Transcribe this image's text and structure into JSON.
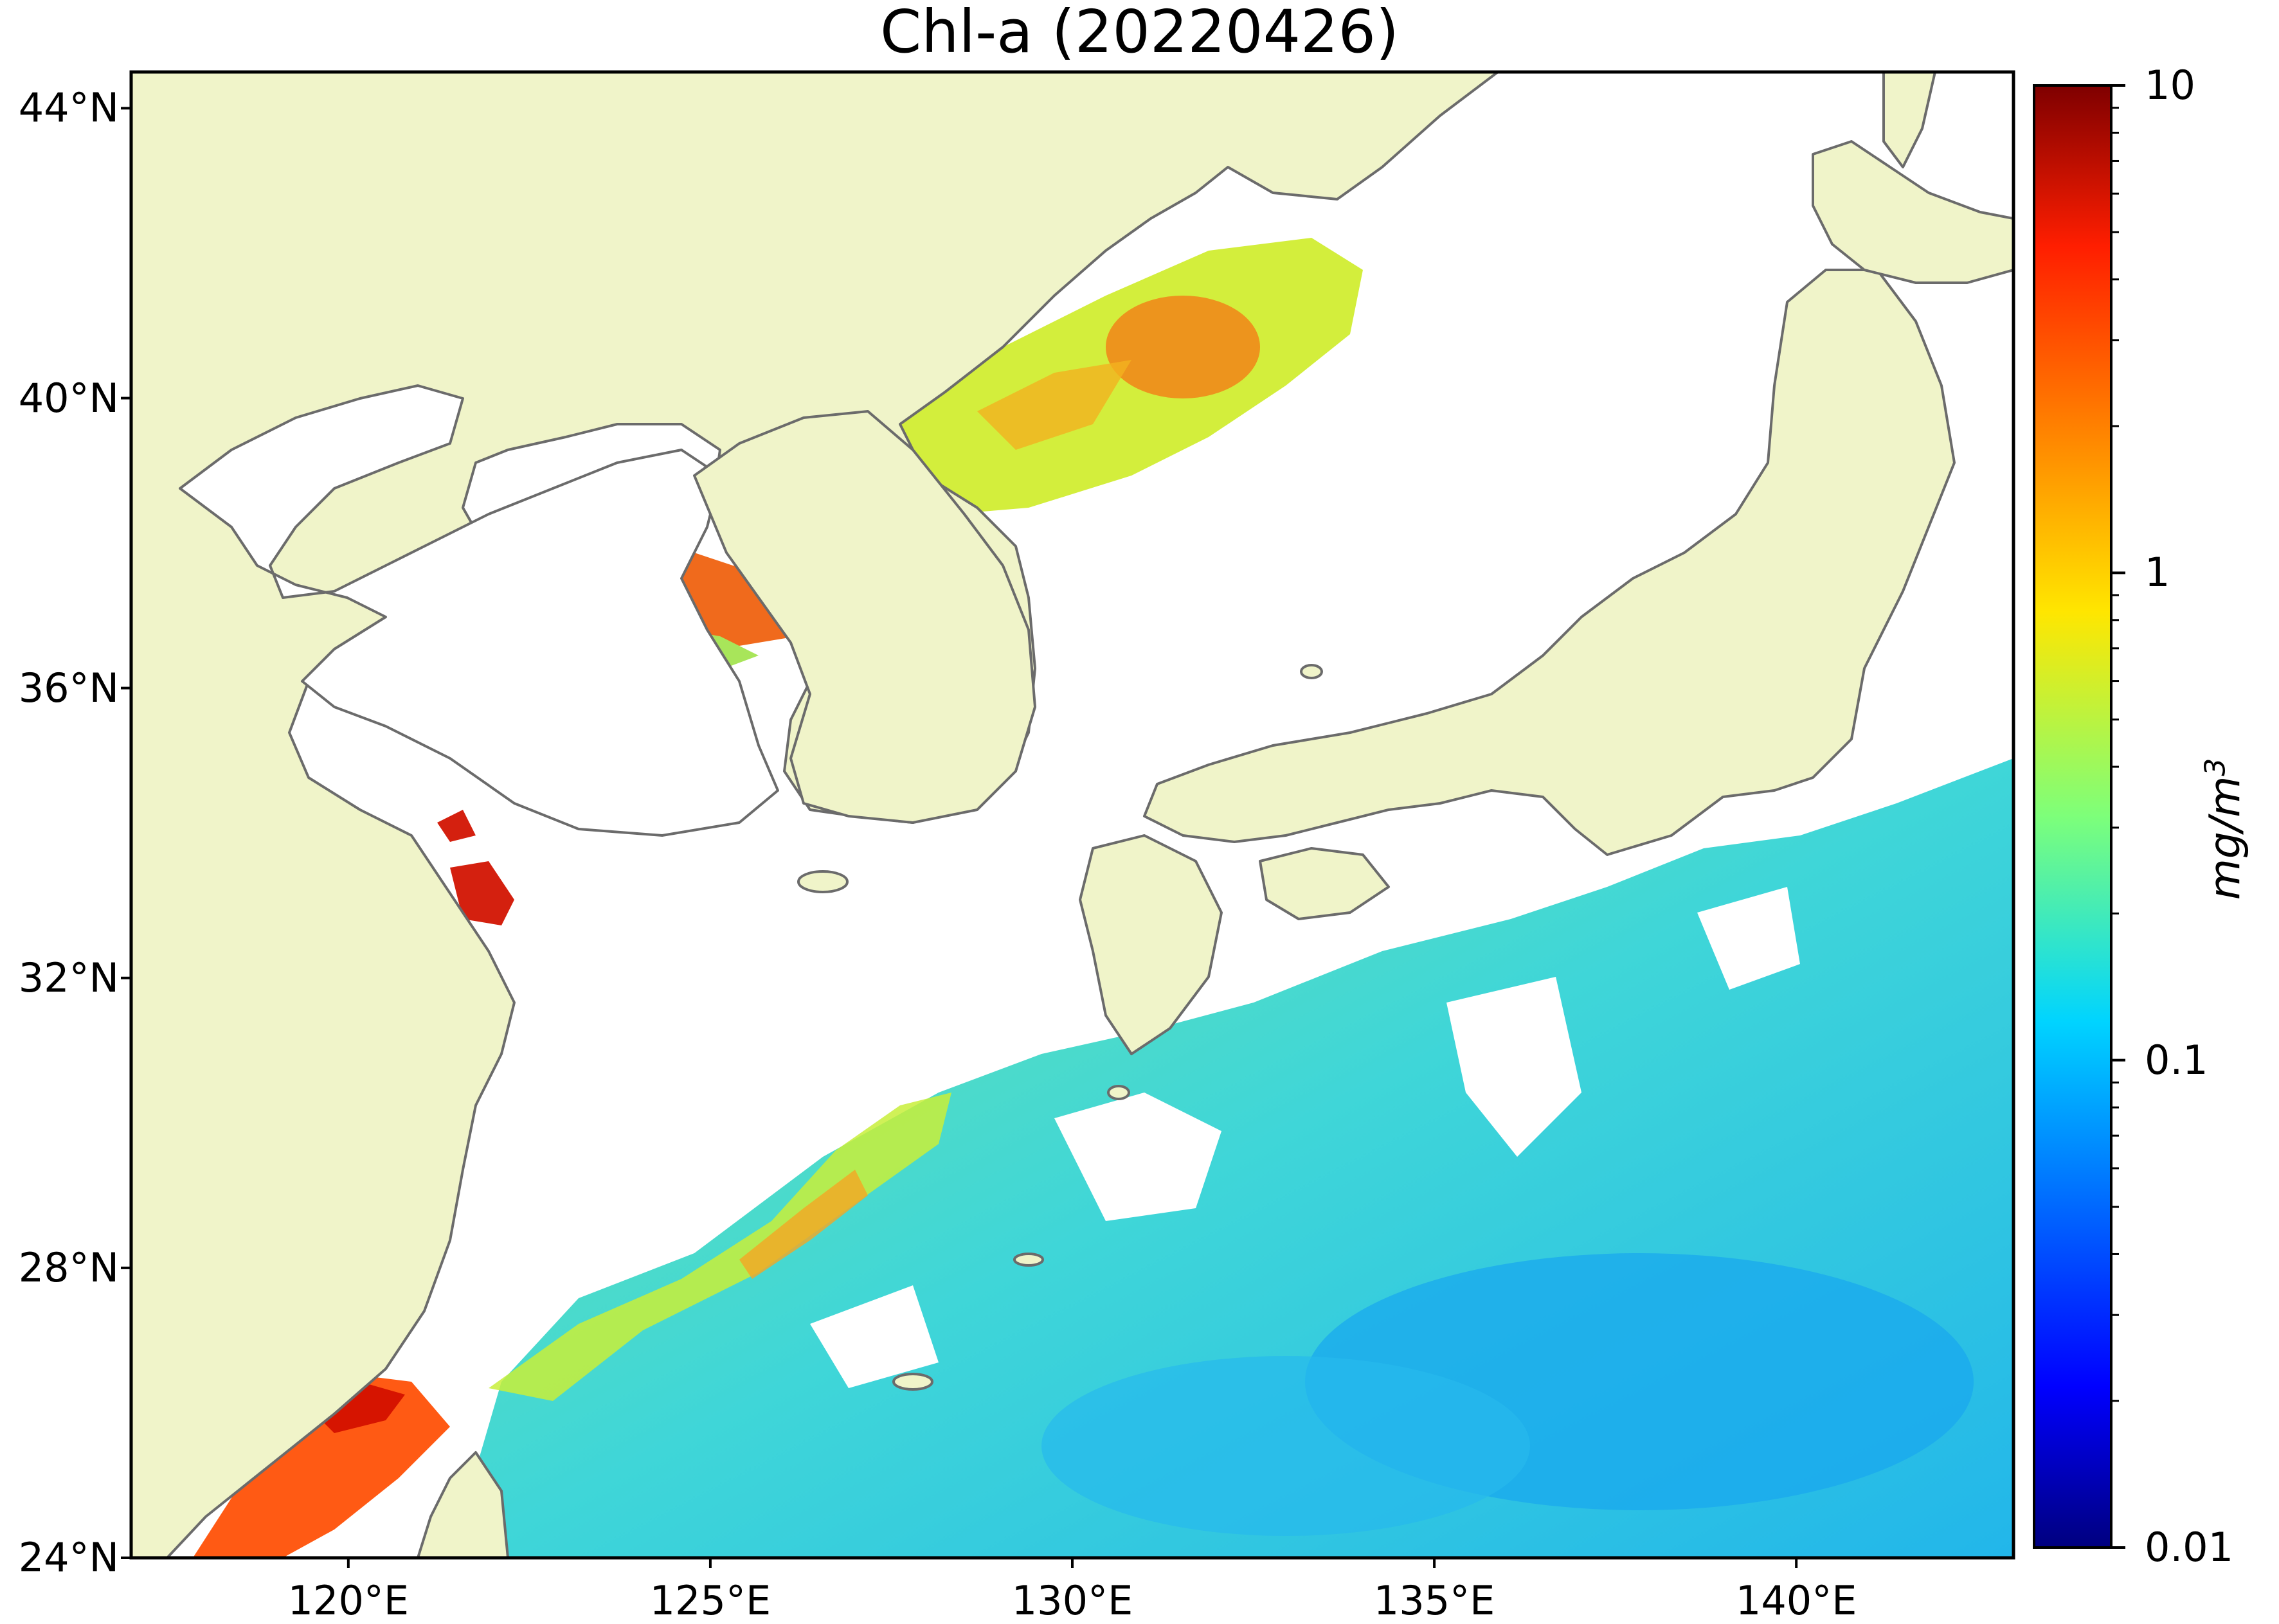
{
  "title": "Chl-a (20220426)",
  "map": {
    "projection": "equirectangular",
    "lon_range": [
      117,
      143
    ],
    "lat_range": [
      24,
      44.5
    ],
    "colors": {
      "land": "#f0f4c9",
      "coastline": "#6b6b6b",
      "no_data": "#ffffff"
    },
    "lat_ticks": [
      "44°N",
      "40°N",
      "36°N",
      "32°N",
      "28°N",
      "24°N"
    ],
    "lat_tick_values": [
      44,
      40,
      36,
      32,
      28,
      24
    ],
    "lon_ticks": [
      "120°E",
      "125°E",
      "130°E",
      "135°E",
      "140°E"
    ],
    "lon_tick_values": [
      120,
      125,
      130,
      135,
      140
    ]
  },
  "colorbar": {
    "scale": "log",
    "range": [
      0.01,
      10
    ],
    "colormap": "jet",
    "tick_labels": [
      "10",
      "1",
      "0.1",
      "0.01"
    ],
    "tick_values": [
      10,
      1,
      0.1,
      0.01
    ],
    "unit_base": "mg/m",
    "unit_exp": "3"
  }
}
